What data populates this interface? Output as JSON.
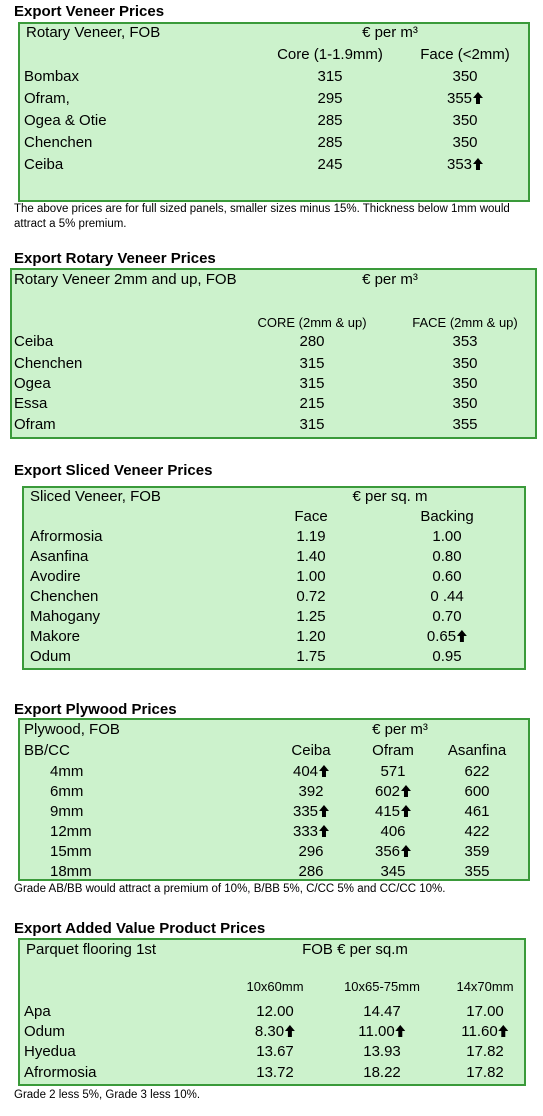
{
  "sections": [
    {
      "title": "Export Veneer Prices",
      "header": {
        "label": "Rotary Veneer, FOB",
        "unit": "€ per m³"
      },
      "columns": [
        "Core (1-1.9mm)",
        "Face (<2mm)"
      ],
      "rows": [
        {
          "label": "Bombax",
          "cells": [
            {
              "value": "315"
            },
            {
              "value": "350"
            }
          ]
        },
        {
          "label": "Ofram,",
          "cells": [
            {
              "value": "295"
            },
            {
              "value": "355",
              "trend": "up"
            }
          ]
        },
        {
          "label": "Ogea  & Otie",
          "cells": [
            {
              "value": "285"
            },
            {
              "value": "350"
            }
          ]
        },
        {
          "label": "Chenchen",
          "cells": [
            {
              "value": "285"
            },
            {
              "value": "350"
            }
          ]
        },
        {
          "label": "Ceiba",
          "cells": [
            {
              "value": "245"
            },
            {
              "value": "353",
              "trend": "up"
            }
          ]
        }
      ],
      "note": "The above prices are for full sized panels, smaller sizes minus 15%. Thickness below 1mm would attract a 5% premium."
    },
    {
      "title": "Export Rotary Veneer Prices",
      "header": {
        "label": "Rotary Veneer 2mm and up, FOB",
        "unit": "€  per m³"
      },
      "columns": [
        "CORE (2mm & up)",
        "FACE (2mm & up)"
      ],
      "rows": [
        {
          "label": "Ceiba",
          "cells": [
            {
              "value": "280"
            },
            {
              "value": "353"
            }
          ]
        },
        {
          "label": "Chenchen",
          "cells": [
            {
              "value": "315"
            },
            {
              "value": "350"
            }
          ]
        },
        {
          "label": "Ogea",
          "cells": [
            {
              "value": "315"
            },
            {
              "value": "350"
            }
          ]
        },
        {
          "label": "Essa",
          "cells": [
            {
              "value": "215"
            },
            {
              "value": "350"
            }
          ]
        },
        {
          "label": "Ofram",
          "cells": [
            {
              "value": "315"
            },
            {
              "value": "355"
            }
          ]
        }
      ]
    },
    {
      "title": "Export Sliced Veneer Prices",
      "header": {
        "label": "Sliced Veneer, FOB",
        "unit": "€ per sq. m"
      },
      "columns": [
        "Face",
        "Backing"
      ],
      "rows": [
        {
          "label": "Afrormosia",
          "cells": [
            {
              "value": "1.19"
            },
            {
              "value": "1.00"
            }
          ]
        },
        {
          "label": "Asanfina",
          "cells": [
            {
              "value": "1.40"
            },
            {
              "value": "0.80"
            }
          ]
        },
        {
          "label": "Avodire",
          "cells": [
            {
              "value": "1.00"
            },
            {
              "value": "0.60"
            }
          ]
        },
        {
          "label": "Chenchen",
          "cells": [
            {
              "value": "0.72"
            },
            {
              "value": "0 .44"
            }
          ]
        },
        {
          "label": "Mahogany",
          "cells": [
            {
              "value": "1.25"
            },
            {
              "value": "0.70"
            }
          ]
        },
        {
          "label": "Makore",
          "cells": [
            {
              "value": "1.20"
            },
            {
              "value": "0.65",
              "trend": "up"
            }
          ]
        },
        {
          "label": "Odum",
          "cells": [
            {
              "value": "1.75"
            },
            {
              "value": "0.95"
            }
          ]
        }
      ]
    },
    {
      "title": "Export Plywood Prices",
      "header": {
        "label": "Plywood, FOB",
        "unit": "€ per m³"
      },
      "row_header": "BB/CC",
      "columns": [
        "Ceiba",
        "Ofram",
        "Asanfina"
      ],
      "rows": [
        {
          "label": "4mm",
          "cells": [
            {
              "value": "404",
              "trend": "up"
            },
            {
              "value": "571"
            },
            {
              "value": "622"
            }
          ]
        },
        {
          "label": "6mm",
          "cells": [
            {
              "value": "392"
            },
            {
              "value": "602",
              "trend": "up"
            },
            {
              "value": "600"
            }
          ]
        },
        {
          "label": "9mm",
          "cells": [
            {
              "value": "335",
              "trend": "up"
            },
            {
              "value": "415",
              "trend": "up"
            },
            {
              "value": "461"
            }
          ]
        },
        {
          "label": "12mm",
          "cells": [
            {
              "value": "333",
              "trend": "up"
            },
            {
              "value": "406"
            },
            {
              "value": "422"
            }
          ]
        },
        {
          "label": "15mm",
          "cells": [
            {
              "value": "296"
            },
            {
              "value": "356",
              "trend": "up"
            },
            {
              "value": "359"
            }
          ]
        },
        {
          "label": "18mm",
          "cells": [
            {
              "value": "286"
            },
            {
              "value": "345"
            },
            {
              "value": "355"
            }
          ]
        }
      ],
      "note": "Grade AB/BB would attract a premium of 10%, B/BB 5%, C/CC 5% and CC/CC 10%."
    },
    {
      "title": "Export Added Value Product Prices",
      "header": {
        "label": "Parquet flooring 1st",
        "unit": "FOB € per sq.m"
      },
      "columns": [
        "10x60mm",
        "10x65-75mm",
        "14x70mm"
      ],
      "rows": [
        {
          "label": "Apa",
          "cells": [
            {
              "value": "12.00"
            },
            {
              "value": "14.47"
            },
            {
              "value": "17.00"
            }
          ]
        },
        {
          "label": "Odum",
          "cells": [
            {
              "value": "8.30",
              "trend": "up"
            },
            {
              "value": "11.00",
              "trend": "up"
            },
            {
              "value": "11.60",
              "trend": "up"
            }
          ]
        },
        {
          "label": "Hyedua",
          "cells": [
            {
              "value": "13.67"
            },
            {
              "value": "13.93"
            },
            {
              "value": "17.82"
            }
          ]
        },
        {
          "label": "Afrormosia",
          "cells": [
            {
              "value": "13.72"
            },
            {
              "value": "18.22"
            },
            {
              "value": "17.82"
            }
          ]
        }
      ],
      "note": "Grade 2 less 5%, Grade 3 less 10%."
    }
  ]
}
